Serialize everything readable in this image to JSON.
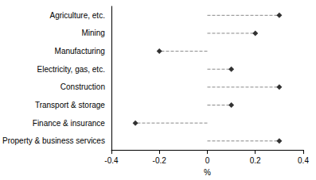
{
  "chart_data": {
    "type": "scatter",
    "orientation": "horizontal",
    "categories": [
      "Agriculture, etc.",
      "Mining",
      "Manufacturing",
      "Electricity, gas, etc.",
      "Construction",
      "Transport & storage",
      "Finance & insurance",
      "Property & business services"
    ],
    "values": [
      0.3,
      0.2,
      -0.2,
      0.1,
      0.3,
      0.1,
      -0.3,
      0.3
    ],
    "color": "#000000",
    "marker": "diamond",
    "line_style": "dashed",
    "xlabel": "%",
    "xlim": [
      -0.4,
      0.4
    ],
    "xticks": [
      -0.4,
      -0.2,
      0,
      0.2,
      0.4
    ],
    "grid": false
  }
}
